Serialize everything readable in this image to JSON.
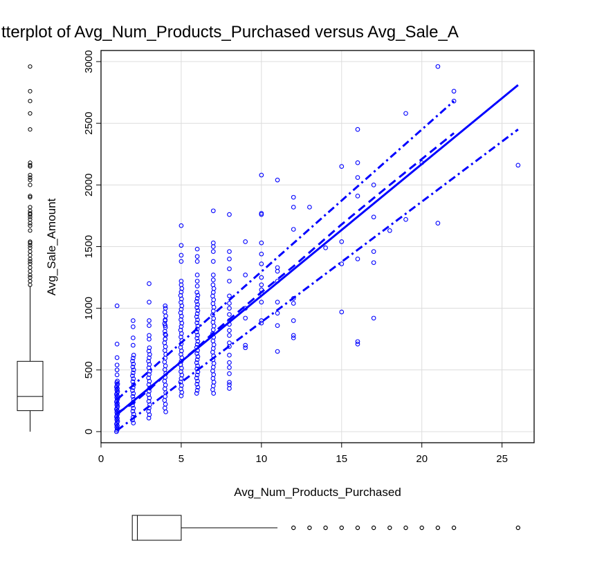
{
  "chart_data": {
    "type": "scatter",
    "title": "tterplot of Avg_Num_Products_Purchased versus Avg_Sale_A",
    "xlabel": "Avg_Num_Products_Purchased",
    "ylabel": "Avg_Sale_Amount",
    "xlim": [
      0,
      27
    ],
    "ylim": [
      -90,
      3090
    ],
    "x_ticks": [
      0,
      5,
      10,
      15,
      20,
      25
    ],
    "y_ticks": [
      0,
      500,
      1000,
      1500,
      2000,
      2500,
      3000
    ],
    "grid": true,
    "point_color": "#0000ff",
    "line_color": "#0000ff",
    "fit_line": {
      "x": [
        1,
        26
      ],
      "y": [
        140,
        2810
      ],
      "style": "solid"
    },
    "smooth_line": {
      "x": [
        1,
        2,
        3,
        4,
        5,
        6,
        7,
        8,
        10,
        12,
        15,
        18,
        20,
        22
      ],
      "y": [
        150,
        230,
        340,
        460,
        570,
        680,
        800,
        910,
        1130,
        1340,
        1680,
        2000,
        2210,
        2420
      ],
      "style": "dashed"
    },
    "upper_band": {
      "x": [
        1,
        22
      ],
      "y": [
        260,
        2680
      ],
      "style": "dashdot"
    },
    "lower_band": {
      "x": [
        1,
        26
      ],
      "y": [
        10,
        2450
      ],
      "style": "dashdot"
    },
    "point_columns": [
      {
        "x": 1,
        "min": 0,
        "max": 410,
        "n": 35
      },
      {
        "x": 2,
        "min": 70,
        "max": 620,
        "n": 24
      },
      {
        "x": 3,
        "min": 110,
        "max": 680,
        "n": 22
      },
      {
        "x": 4,
        "min": 160,
        "max": 1000,
        "n": 28
      },
      {
        "x": 5,
        "min": 290,
        "max": 1160,
        "n": 32
      },
      {
        "x": 6,
        "min": 310,
        "max": 1130,
        "n": 34
      },
      {
        "x": 7,
        "min": 310,
        "max": 1190,
        "n": 30
      }
    ],
    "points": [
      {
        "x": 1,
        "y": 1020
      },
      {
        "x": 1,
        "y": 710
      },
      {
        "x": 1,
        "y": 600
      },
      {
        "x": 1,
        "y": 540
      },
      {
        "x": 1,
        "y": 500
      },
      {
        "x": 1,
        "y": 460
      },
      {
        "x": 2,
        "y": 900
      },
      {
        "x": 2,
        "y": 850
      },
      {
        "x": 2,
        "y": 760
      },
      {
        "x": 2,
        "y": 700
      },
      {
        "x": 3,
        "y": 1200
      },
      {
        "x": 3,
        "y": 1050
      },
      {
        "x": 3,
        "y": 900
      },
      {
        "x": 3,
        "y": 860
      },
      {
        "x": 3,
        "y": 780
      },
      {
        "x": 3,
        "y": 750
      },
      {
        "x": 4,
        "y": 1020
      },
      {
        "x": 4,
        "y": 900
      },
      {
        "x": 4,
        "y": 860
      },
      {
        "x": 4,
        "y": 790
      },
      {
        "x": 4,
        "y": 750
      },
      {
        "x": 5,
        "y": 1670
      },
      {
        "x": 5,
        "y": 1510
      },
      {
        "x": 5,
        "y": 1430
      },
      {
        "x": 5,
        "y": 1380
      },
      {
        "x": 5,
        "y": 1220
      },
      {
        "x": 5,
        "y": 1190
      },
      {
        "x": 6,
        "y": 1480
      },
      {
        "x": 6,
        "y": 1420
      },
      {
        "x": 6,
        "y": 1380
      },
      {
        "x": 6,
        "y": 1270
      },
      {
        "x": 6,
        "y": 1220
      },
      {
        "x": 6,
        "y": 1180
      },
      {
        "x": 7,
        "y": 1790
      },
      {
        "x": 7,
        "y": 1530
      },
      {
        "x": 7,
        "y": 1500
      },
      {
        "x": 7,
        "y": 1460
      },
      {
        "x": 7,
        "y": 1380
      },
      {
        "x": 7,
        "y": 1270
      },
      {
        "x": 7,
        "y": 1230
      },
      {
        "x": 8,
        "y": 1760
      },
      {
        "x": 8,
        "y": 1460
      },
      {
        "x": 8,
        "y": 1400
      },
      {
        "x": 8,
        "y": 1320
      },
      {
        "x": 8,
        "y": 1220
      },
      {
        "x": 8,
        "y": 1100
      },
      {
        "x": 8,
        "y": 1040
      },
      {
        "x": 8,
        "y": 1000
      },
      {
        "x": 8,
        "y": 950
      },
      {
        "x": 8,
        "y": 900
      },
      {
        "x": 8,
        "y": 870
      },
      {
        "x": 8,
        "y": 820
      },
      {
        "x": 8,
        "y": 780
      },
      {
        "x": 8,
        "y": 720
      },
      {
        "x": 8,
        "y": 690
      },
      {
        "x": 8,
        "y": 620
      },
      {
        "x": 8,
        "y": 560
      },
      {
        "x": 8,
        "y": 520
      },
      {
        "x": 8,
        "y": 470
      },
      {
        "x": 8,
        "y": 400
      },
      {
        "x": 8,
        "y": 380
      },
      {
        "x": 8,
        "y": 350
      },
      {
        "x": 9,
        "y": 1540
      },
      {
        "x": 9,
        "y": 1270
      },
      {
        "x": 9,
        "y": 1000
      },
      {
        "x": 9,
        "y": 920
      },
      {
        "x": 9,
        "y": 700
      },
      {
        "x": 9,
        "y": 680
      },
      {
        "x": 10,
        "y": 2080
      },
      {
        "x": 10,
        "y": 1770
      },
      {
        "x": 10,
        "y": 1760
      },
      {
        "x": 10,
        "y": 1530
      },
      {
        "x": 10,
        "y": 1440
      },
      {
        "x": 10,
        "y": 1360
      },
      {
        "x": 10,
        "y": 1250
      },
      {
        "x": 10,
        "y": 1190
      },
      {
        "x": 10,
        "y": 1150
      },
      {
        "x": 10,
        "y": 1120
      },
      {
        "x": 10,
        "y": 1050
      },
      {
        "x": 10,
        "y": 900
      },
      {
        "x": 10,
        "y": 880
      },
      {
        "x": 11,
        "y": 2040
      },
      {
        "x": 11,
        "y": 1330
      },
      {
        "x": 11,
        "y": 1300
      },
      {
        "x": 11,
        "y": 1220
      },
      {
        "x": 11,
        "y": 1050
      },
      {
        "x": 11,
        "y": 960
      },
      {
        "x": 11,
        "y": 860
      },
      {
        "x": 11,
        "y": 650
      },
      {
        "x": 12,
        "y": 1900
      },
      {
        "x": 12,
        "y": 1820
      },
      {
        "x": 12,
        "y": 1640
      },
      {
        "x": 12,
        "y": 1080
      },
      {
        "x": 12,
        "y": 1040
      },
      {
        "x": 12,
        "y": 900
      },
      {
        "x": 12,
        "y": 780
      },
      {
        "x": 12,
        "y": 760
      },
      {
        "x": 13,
        "y": 1820
      },
      {
        "x": 14,
        "y": 1490
      },
      {
        "x": 15,
        "y": 2150
      },
      {
        "x": 15,
        "y": 1540
      },
      {
        "x": 15,
        "y": 1360
      },
      {
        "x": 15,
        "y": 970
      },
      {
        "x": 16,
        "y": 2450
      },
      {
        "x": 16,
        "y": 2180
      },
      {
        "x": 16,
        "y": 2060
      },
      {
        "x": 16,
        "y": 1910
      },
      {
        "x": 16,
        "y": 1400
      },
      {
        "x": 16,
        "y": 730
      },
      {
        "x": 16,
        "y": 710
      },
      {
        "x": 17,
        "y": 2000
      },
      {
        "x": 17,
        "y": 1740
      },
      {
        "x": 17,
        "y": 1460
      },
      {
        "x": 17,
        "y": 1370
      },
      {
        "x": 17,
        "y": 920
      },
      {
        "x": 18,
        "y": 1630
      },
      {
        "x": 19,
        "y": 2580
      },
      {
        "x": 19,
        "y": 1720
      },
      {
        "x": 20,
        "y": 2180
      },
      {
        "x": 21,
        "y": 2960
      },
      {
        "x": 21,
        "y": 1690
      },
      {
        "x": 22,
        "y": 2760
      },
      {
        "x": 22,
        "y": 2680
      },
      {
        "x": 26,
        "y": 2160
      }
    ],
    "y_boxplot": {
      "min": 0,
      "q1": 170,
      "median": 285,
      "q3": 570,
      "whisker_high": 1180,
      "outliers": [
        1190,
        1220,
        1250,
        1270,
        1300,
        1330,
        1360,
        1380,
        1400,
        1430,
        1460,
        1490,
        1510,
        1530,
        1540,
        1630,
        1670,
        1690,
        1720,
        1740,
        1760,
        1770,
        1790,
        1820,
        1900,
        1910,
        2000,
        2040,
        2060,
        2080,
        2150,
        2160,
        2180,
        2450,
        2580,
        2680,
        2760,
        2960
      ]
    },
    "x_boxplot": {
      "min": 1,
      "q1": 1,
      "median": 3,
      "q3": 5,
      "whisker_high": 11,
      "outliers": [
        12,
        13,
        14,
        15,
        16,
        17,
        18,
        19,
        20,
        21,
        22,
        26
      ]
    }
  }
}
